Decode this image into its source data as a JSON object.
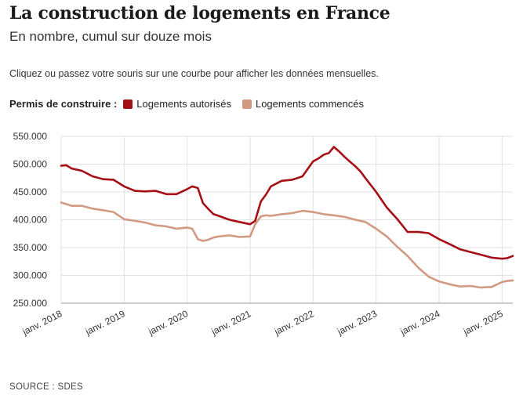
{
  "header": {
    "title": "La construction de logements en France",
    "subtitle": "En nombre, cumul sur douze mois",
    "note": "Cliquez ou passez votre souris sur une courbe pour afficher les données mensuelles."
  },
  "legend": {
    "lead": "Permis de construire :",
    "items": [
      {
        "label": "Logements autorisés",
        "color": "#a50f15"
      },
      {
        "label": "Logements commencés",
        "color": "#d29a82"
      }
    ]
  },
  "source": "SOURCE : SDES",
  "chart_data": {
    "type": "line",
    "title": "La construction de logements en France",
    "subtitle": "En nombre, cumul sur douze mois",
    "xlabel": "",
    "ylabel": "",
    "ylim": [
      250000,
      550000
    ],
    "y_ticks": [
      250000,
      300000,
      350000,
      400000,
      450000,
      500000,
      550000
    ],
    "y_tick_labels": [
      "250.000",
      "300.000",
      "350.000",
      "400.000",
      "450.000",
      "500.000",
      "550.000"
    ],
    "x_tick_labels": [
      "janv. 2018",
      "janv. 2019",
      "janv. 2020",
      "janv. 2021",
      "janv. 2022",
      "janv. 2023",
      "janv. 2024",
      "janv. 2025"
    ],
    "x_tick_positions": [
      2018,
      2019,
      2020,
      2021,
      2022,
      2023,
      2024,
      2025
    ],
    "xlim": [
      2018,
      2025.17
    ],
    "grid": true,
    "legend_position": "top-left",
    "series": [
      {
        "name": "Logements autorisés",
        "color": "#a50f15",
        "x": [
          2018.0,
          2018.08,
          2018.17,
          2018.33,
          2018.5,
          2018.67,
          2018.83,
          2019.0,
          2019.17,
          2019.33,
          2019.5,
          2019.67,
          2019.83,
          2020.0,
          2020.08,
          2020.17,
          2020.25,
          2020.33,
          2020.42,
          2020.5,
          2020.67,
          2020.83,
          2021.0,
          2021.08,
          2021.17,
          2021.25,
          2021.33,
          2021.5,
          2021.67,
          2021.83,
          2022.0,
          2022.08,
          2022.17,
          2022.25,
          2022.33,
          2022.42,
          2022.5,
          2022.58,
          2022.67,
          2022.75,
          2022.83,
          2023.0,
          2023.17,
          2023.33,
          2023.5,
          2023.67,
          2023.75,
          2023.83,
          2024.0,
          2024.17,
          2024.33,
          2024.5,
          2024.67,
          2024.83,
          2025.0,
          2025.08,
          2025.17
        ],
        "y": [
          497000,
          498000,
          492000,
          488000,
          478000,
          473000,
          472000,
          460000,
          452000,
          451000,
          452000,
          446000,
          446000,
          455000,
          460000,
          457000,
          430000,
          420000,
          410000,
          407000,
          400000,
          396000,
          392000,
          398000,
          433000,
          445000,
          460000,
          470000,
          472000,
          478000,
          505000,
          510000,
          517000,
          520000,
          531000,
          522000,
          513000,
          505000,
          496000,
          487000,
          475000,
          450000,
          422000,
          402000,
          378000,
          378000,
          377000,
          376000,
          365000,
          356000,
          347000,
          342000,
          337000,
          332000,
          330000,
          331000,
          335000
        ]
      },
      {
        "name": "Logements commencés",
        "color": "#d29a82",
        "x": [
          2018.0,
          2018.17,
          2018.33,
          2018.5,
          2018.67,
          2018.83,
          2019.0,
          2019.17,
          2019.33,
          2019.5,
          2019.67,
          2019.83,
          2020.0,
          2020.08,
          2020.17,
          2020.25,
          2020.33,
          2020.42,
          2020.5,
          2020.67,
          2020.83,
          2021.0,
          2021.08,
          2021.17,
          2021.25,
          2021.33,
          2021.5,
          2021.67,
          2021.83,
          2022.0,
          2022.17,
          2022.33,
          2022.5,
          2022.67,
          2022.83,
          2023.0,
          2023.17,
          2023.33,
          2023.5,
          2023.67,
          2023.83,
          2024.0,
          2024.17,
          2024.33,
          2024.5,
          2024.67,
          2024.75,
          2024.83,
          2025.0,
          2025.08,
          2025.17
        ],
        "y": [
          431000,
          425000,
          425000,
          420000,
          417000,
          414000,
          401000,
          398000,
          395000,
          390000,
          388000,
          384000,
          386000,
          384000,
          365000,
          362000,
          364000,
          368000,
          370000,
          372000,
          369000,
          370000,
          392000,
          406000,
          408000,
          407000,
          410000,
          412000,
          416000,
          414000,
          410000,
          408000,
          405000,
          400000,
          396000,
          384000,
          370000,
          352000,
          335000,
          314000,
          298000,
          289000,
          284000,
          280000,
          281000,
          278000,
          279000,
          279000,
          288000,
          290000,
          291000
        ]
      }
    ]
  }
}
